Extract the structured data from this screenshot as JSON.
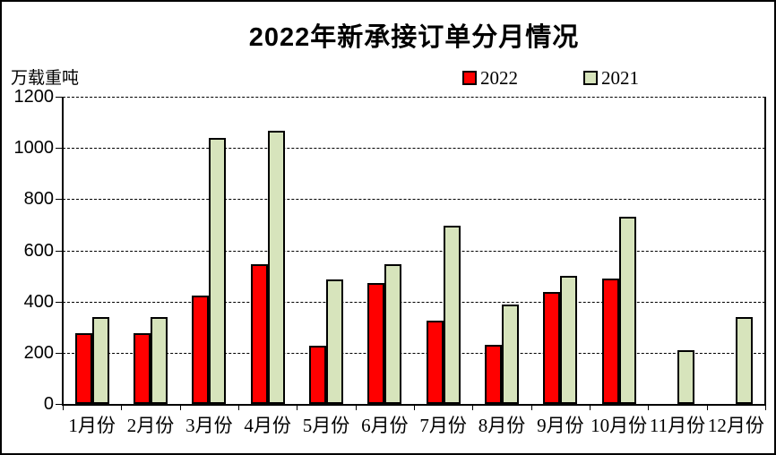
{
  "chart_data": {
    "type": "bar",
    "title": "2022年新承接订单分月情况",
    "ylabel": "万载重吨",
    "xlabel": "",
    "categories": [
      "1月份",
      "2月份",
      "3月份",
      "4月份",
      "5月份",
      "6月份",
      "7月份",
      "8月份",
      "9月份",
      "10月份",
      "11月份",
      "12月份"
    ],
    "series": [
      {
        "name": "2022",
        "color": "#FF0000",
        "values": [
          277,
          277,
          425,
          546,
          227,
          473,
          324,
          230,
          438,
          489,
          0,
          0
        ]
      },
      {
        "name": "2021",
        "color": "#D7E4BC",
        "values": [
          338,
          338,
          1040,
          1068,
          486,
          546,
          697,
          388,
          501,
          731,
          210,
          340
        ]
      }
    ],
    "ylim": [
      0,
      1200
    ],
    "ytick_step": 200,
    "grid": "horizontal-dashed",
    "legend_position": "top-center"
  },
  "colors": {
    "background": "#FFFFFF",
    "frame_border": "#000000",
    "bar_border": "#000000",
    "series_2022": "#FF0000",
    "series_2021": "#D7E4BC"
  }
}
